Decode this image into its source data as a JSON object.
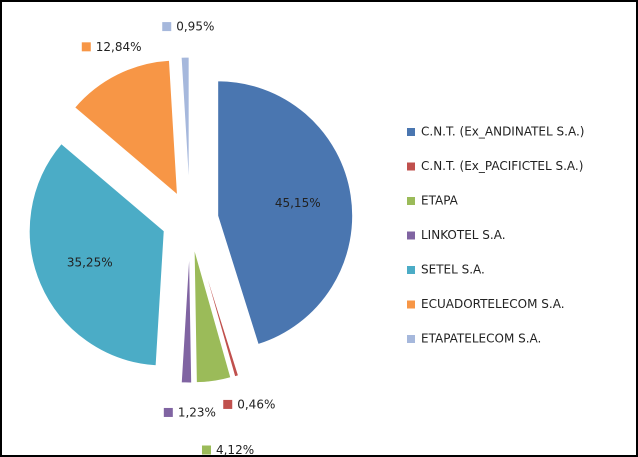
{
  "chart_data": {
    "type": "pie",
    "categories": [
      "C.N.T. (Ex_ANDINATEL S.A.)",
      "C.N.T. (Ex_PACIFICTEL S.A.)",
      "ETAPA",
      "LINKOTEL S.A.",
      "SETEL S.A.",
      "ECUADORTELECOM S.A.",
      "ETAPATELECOM S.A."
    ],
    "values": [
      45.15,
      0.46,
      4.12,
      1.23,
      35.25,
      12.84,
      0.95
    ],
    "value_labels": [
      "45,15%",
      "0,46%",
      "4,12%",
      "1,23%",
      "35,25%",
      "12,84%",
      "0,95%"
    ],
    "colors": [
      "#4a76b0",
      "#c0504d",
      "#9bbb59",
      "#8064a2",
      "#4bacc6",
      "#f79646",
      "#a6b8dc"
    ],
    "exploded": true,
    "legend": "right"
  }
}
